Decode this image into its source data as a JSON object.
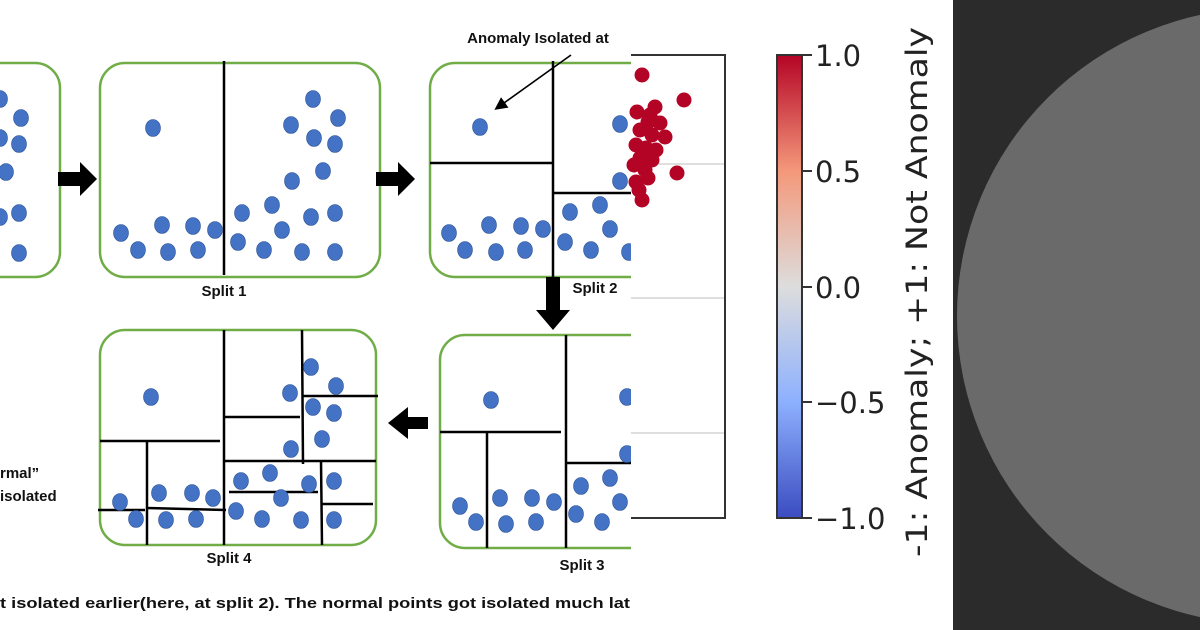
{
  "diagram": {
    "annotation": "Anomaly Isolated at",
    "split_labels": [
      "Split 1",
      "Split 2",
      "Split 3",
      "Split 4"
    ],
    "left_fragment_1": "rmal”",
    "left_fragment_2": "isolated",
    "caption": "t isolated earlier(here, at split 2). The normal points got isolated much lat",
    "colors": {
      "point": "#4472c4",
      "panel_border": "#70ad47",
      "cut_line": "#000000"
    }
  },
  "scatter": {
    "point_color": "#b40426"
  },
  "colorbar": {
    "label": "-1: Anomaly; +1: Not Anomaly",
    "ticks": [
      "1.0",
      "0.5",
      "0.0",
      "−0.5",
      "−1.0"
    ],
    "range": [
      -1.0,
      1.0
    ],
    "colormap": "coolwarm",
    "colors": {
      "low": "#3b4cc0",
      "mid": "#dddddd",
      "high": "#b40426"
    }
  },
  "background_panel": {
    "color": "#2b2b2b",
    "circle_color": "#6a6a6a"
  }
}
